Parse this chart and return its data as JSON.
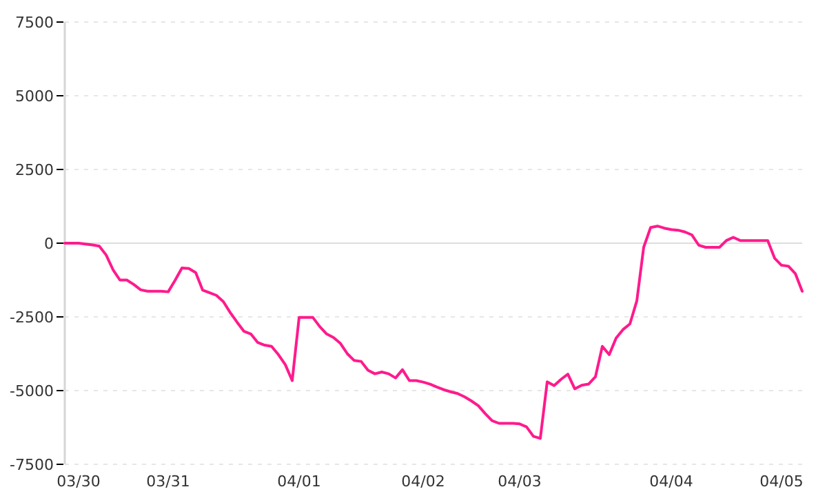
{
  "chart_data": {
    "type": "line",
    "categories": [
      null,
      null,
      "03/30",
      null,
      null,
      null,
      null,
      null,
      null,
      null,
      null,
      null,
      null,
      null,
      null,
      "03/31",
      null,
      null,
      null,
      null,
      null,
      null,
      null,
      null,
      null,
      null,
      null,
      null,
      null,
      null,
      null,
      null,
      null,
      null,
      "04/01",
      null,
      null,
      null,
      null,
      null,
      null,
      null,
      null,
      null,
      null,
      null,
      null,
      null,
      null,
      null,
      null,
      null,
      "04/02",
      null,
      null,
      null,
      null,
      null,
      null,
      null,
      null,
      null,
      null,
      null,
      null,
      null,
      "04/03",
      null,
      null,
      null,
      null,
      null,
      null,
      null,
      null,
      null,
      null,
      null,
      null,
      null,
      null,
      null,
      null,
      null,
      null,
      null,
      null,
      null,
      "04/04",
      null,
      null,
      null,
      null,
      null,
      null,
      null,
      null,
      null,
      null,
      null,
      null,
      null,
      null,
      null,
      "04/05",
      null,
      null,
      null
    ],
    "series": [
      {
        "color": "#ff1a8c",
        "values": [
          0,
          0,
          0,
          -30,
          -60,
          -100,
          -400,
          -900,
          -1250,
          -1250,
          -1400,
          -1580,
          -1630,
          -1630,
          -1630,
          -1650,
          -1260,
          -840,
          -860,
          -1000,
          -1590,
          -1680,
          -1770,
          -1980,
          -2350,
          -2680,
          -2990,
          -3080,
          -3370,
          -3460,
          -3500,
          -3780,
          -4120,
          -4660,
          -2520,
          -2520,
          -2520,
          -2830,
          -3080,
          -3200,
          -3400,
          -3750,
          -3980,
          -4010,
          -4310,
          -4430,
          -4370,
          -4430,
          -4570,
          -4290,
          -4660,
          -4660,
          -4710,
          -4780,
          -4880,
          -4970,
          -5040,
          -5100,
          -5210,
          -5350,
          -5510,
          -5780,
          -6020,
          -6110,
          -6110,
          -6110,
          -6130,
          -6230,
          -6550,
          -6620,
          -4700,
          -4830,
          -4620,
          -4440,
          -4940,
          -4820,
          -4780,
          -4530,
          -3500,
          -3780,
          -3220,
          -2930,
          -2740,
          -1960,
          -140,
          530,
          580,
          510,
          460,
          440,
          380,
          280,
          -70,
          -140,
          -140,
          -140,
          90,
          200,
          90,
          90,
          90,
          90,
          90,
          -510,
          -750,
          -780,
          -1030,
          -1630
        ]
      }
    ],
    "ylim": [
      -7500,
      7500
    ],
    "yticks": [
      -7500,
      -5000,
      -2500,
      0,
      2500,
      5000,
      7500
    ],
    "grid": "y",
    "marker": "none",
    "line_style": "solid"
  }
}
